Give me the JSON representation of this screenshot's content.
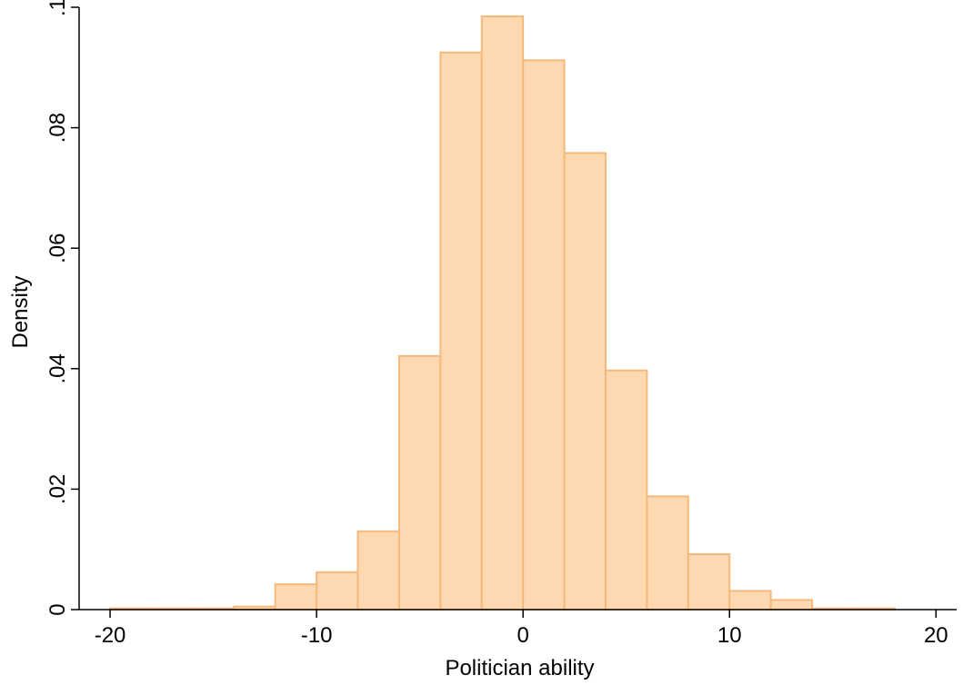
{
  "chart_data": {
    "type": "bar",
    "subtype": "histogram",
    "title": "",
    "xlabel": "Politician ability",
    "ylabel": "Density",
    "bin_width": 2,
    "bins": [
      {
        "start": -20,
        "end": -18,
        "density": 0.0002
      },
      {
        "start": -18,
        "end": -16,
        "density": 0.0002
      },
      {
        "start": -16,
        "end": -14,
        "density": 0.0002
      },
      {
        "start": -14,
        "end": -12,
        "density": 0.0005
      },
      {
        "start": -12,
        "end": -10,
        "density": 0.0042
      },
      {
        "start": -10,
        "end": -8,
        "density": 0.0062
      },
      {
        "start": -8,
        "end": -6,
        "density": 0.013
      },
      {
        "start": -6,
        "end": -4,
        "density": 0.0421
      },
      {
        "start": -4,
        "end": -2,
        "density": 0.0925
      },
      {
        "start": -2,
        "end": 0,
        "density": 0.0985
      },
      {
        "start": 0,
        "end": 2,
        "density": 0.0912
      },
      {
        "start": 2,
        "end": 4,
        "density": 0.0758
      },
      {
        "start": 4,
        "end": 6,
        "density": 0.0397
      },
      {
        "start": 6,
        "end": 8,
        "density": 0.0188
      },
      {
        "start": 8,
        "end": 10,
        "density": 0.0092
      },
      {
        "start": 10,
        "end": 12,
        "density": 0.0031
      },
      {
        "start": 12,
        "end": 14,
        "density": 0.0016
      },
      {
        "start": 14,
        "end": 16,
        "density": 0.0002
      },
      {
        "start": 16,
        "end": 18,
        "density": 0.0002
      }
    ],
    "xlim": [
      -21.5,
      21
    ],
    "ylim": [
      0,
      0.1
    ],
    "xticks": [
      {
        "value": -20,
        "label": "-20"
      },
      {
        "value": -10,
        "label": "-10"
      },
      {
        "value": 0,
        "label": "0"
      },
      {
        "value": 10,
        "label": "10"
      },
      {
        "value": 20,
        "label": "20"
      }
    ],
    "yticks": [
      {
        "value": 0,
        "label": "0"
      },
      {
        "value": 0.02,
        "label": ".02"
      },
      {
        "value": 0.04,
        "label": ".04"
      },
      {
        "value": 0.06,
        "label": ".06"
      },
      {
        "value": 0.08,
        "label": ".08"
      },
      {
        "value": 0.1,
        "label": ".1"
      }
    ],
    "grid": false,
    "legend": "none",
    "colors": {
      "bar_fill": "#fdd8b0",
      "bar_stroke": "#f5b97c",
      "axis": "#000000",
      "background": "#ffffff"
    }
  }
}
